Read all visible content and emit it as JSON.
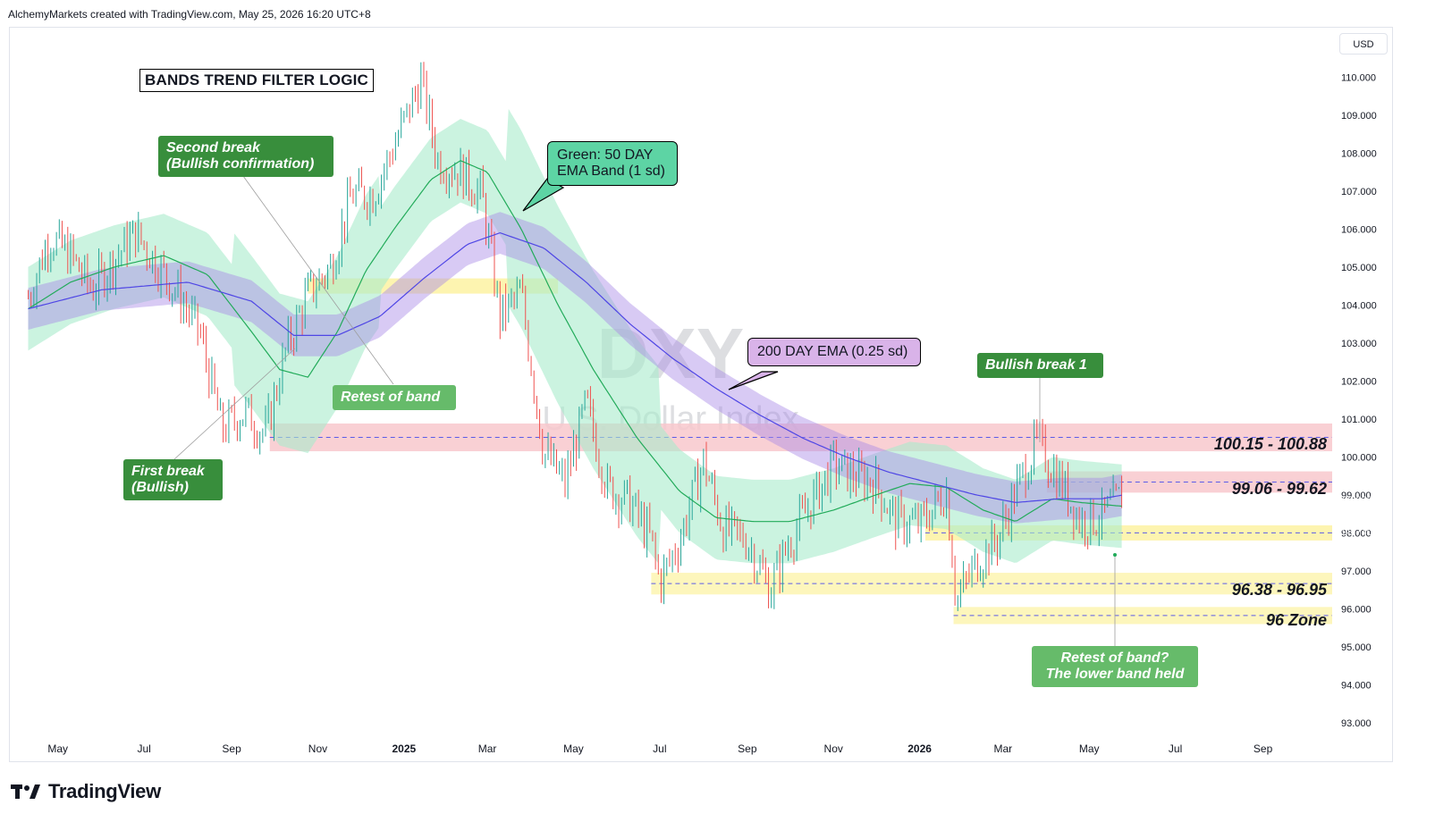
{
  "header": {
    "credit": "AlchemyMarkets created with TradingView.com, May 25, 2026 16:20 UTC+8",
    "currency": "USD"
  },
  "brand": {
    "name": "TradingView",
    "icon": "tradingview-logo-icon"
  },
  "watermark": {
    "symbol": "DXY",
    "name": "U.S. Dollar Index"
  },
  "annotations": {
    "title": "BANDS TREND FILTER LOGIC",
    "second_break_1": "Second break",
    "second_break_2": "(Bullish confirmation)",
    "first_break_1": "First break",
    "first_break_2": "(Bullish)",
    "retest_band": "Retest of band",
    "ema50_1": "Green: 50 DAY",
    "ema50_2": "EMA Band (1 sd)",
    "ema200": "200 DAY EMA (0.25 sd)",
    "bullish_break_1": "Bullish break 1",
    "retest_q_1": "Retest of band?",
    "retest_q_2": "The lower band held"
  },
  "zones": [
    {
      "label": "100.15 - 100.88",
      "low": 100.15,
      "high": 100.88,
      "color": "#f8c8cc"
    },
    {
      "label": "99.06 - 99.62",
      "low": 99.06,
      "high": 99.62,
      "color": "#f8c8cc"
    },
    {
      "label": "96.38 - 96.95",
      "low": 96.38,
      "high": 96.95,
      "color": "#fdf4b0"
    },
    {
      "label": "96 Zone",
      "low": 95.6,
      "high": 96.05,
      "color": "#fdf4b0"
    }
  ],
  "price_tags": [
    {
      "value": "99.020",
      "color": "#f23645"
    },
    {
      "value": "98.997",
      "color": "#7b2cf5"
    },
    {
      "value": "98.740",
      "color": "#22ab5a"
    }
  ],
  "chart_data": {
    "type": "line",
    "title": "",
    "symbol": "DXY",
    "ylim": [
      92.6,
      111.3
    ],
    "y_ticks": [
      "93.000",
      "94.000",
      "95.000",
      "96.000",
      "97.000",
      "98.000",
      "99.000",
      "100.000",
      "101.000",
      "102.000",
      "103.000",
      "104.000",
      "105.000",
      "106.000",
      "107.000",
      "108.000",
      "109.000",
      "110.000"
    ],
    "x_ticks": [
      "May",
      "Jul",
      "Sep",
      "Nov",
      "2025",
      "Mar",
      "May",
      "Jul",
      "Sep",
      "Nov",
      "2026",
      "Mar",
      "May",
      "Jul",
      "Sep"
    ],
    "grid": false,
    "series": [
      {
        "name": "Green: 50 DAY EMA Band (1 sd)",
        "x": [
          "2024-04-10",
          "2024-05-10",
          "2024-06-10",
          "2024-07-15",
          "2024-08-15",
          "2024-09-15",
          "2024-10-05",
          "2024-10-25",
          "2024-11-15",
          "2024-12-05",
          "2024-12-25",
          "2025-01-20",
          "2025-02-10",
          "2025-03-01",
          "2025-03-25",
          "2025-04-20",
          "2025-05-15",
          "2025-06-15",
          "2025-07-15",
          "2025-08-10",
          "2025-09-05",
          "2025-10-01",
          "2025-11-01",
          "2025-12-01",
          "2025-12-25",
          "2026-01-20",
          "2026-02-15",
          "2026-03-10",
          "2026-04-05",
          "2026-04-25",
          "2026-05-25"
        ],
        "values": [
          103.9,
          104.6,
          105.0,
          105.3,
          104.8,
          103.3,
          102.3,
          102.1,
          103.3,
          104.9,
          106.0,
          107.3,
          107.8,
          107.5,
          106.0,
          104.0,
          102.3,
          100.5,
          99.1,
          98.4,
          98.3,
          98.3,
          98.6,
          99.0,
          99.3,
          99.2,
          98.6,
          98.3,
          98.9,
          98.8,
          98.7
        ]
      },
      {
        "name": "200 DAY EMA (0.25 sd)",
        "x": [
          "2024-04-10",
          "2024-06-01",
          "2024-08-01",
          "2024-09-15",
          "2024-10-15",
          "2024-11-15",
          "2024-12-15",
          "2025-01-15",
          "2025-02-15",
          "2025-03-10",
          "2025-04-10",
          "2025-05-10",
          "2025-06-10",
          "2025-07-10",
          "2025-08-10",
          "2025-09-10",
          "2025-10-10",
          "2025-11-10",
          "2025-12-10",
          "2026-01-10",
          "2026-02-10",
          "2026-03-10",
          "2026-04-10",
          "2026-05-10",
          "2026-05-25"
        ],
        "values": [
          103.9,
          104.4,
          104.6,
          104.1,
          103.2,
          103.2,
          103.7,
          104.7,
          105.6,
          105.9,
          105.5,
          104.6,
          103.5,
          102.6,
          101.8,
          101.1,
          100.5,
          100.0,
          99.6,
          99.3,
          99.0,
          98.8,
          98.9,
          98.9,
          99.0
        ]
      }
    ],
    "price": {
      "x": [
        "2024-04-10",
        "2024-04-25",
        "2024-05-10",
        "2024-05-25",
        "2024-06-10",
        "2024-06-25",
        "2024-07-10",
        "2024-07-25",
        "2024-08-10",
        "2024-08-25",
        "2024-09-10",
        "2024-09-25",
        "2024-10-10",
        "2024-10-25",
        "2024-11-10",
        "2024-11-25",
        "2024-12-10",
        "2024-12-25",
        "2025-01-13",
        "2025-01-25",
        "2025-02-10",
        "2025-02-25",
        "2025-03-10",
        "2025-03-25",
        "2025-04-10",
        "2025-04-25",
        "2025-05-10",
        "2025-05-25",
        "2025-06-10",
        "2025-06-25",
        "2025-07-01",
        "2025-07-15",
        "2025-08-01",
        "2025-08-15",
        "2025-09-01",
        "2025-09-17",
        "2025-10-01",
        "2025-10-15",
        "2025-11-01",
        "2025-11-15",
        "2025-12-01",
        "2025-12-15",
        "2026-01-01",
        "2026-01-20",
        "2026-01-27",
        "2026-02-10",
        "2026-02-25",
        "2026-03-10",
        "2026-03-25",
        "2026-04-10",
        "2026-04-25",
        "2026-05-10",
        "2026-05-25"
      ],
      "values": [
        104.2,
        105.8,
        105.3,
        104.4,
        105.2,
        105.9,
        105.1,
        104.3,
        103.2,
        100.7,
        101.2,
        100.6,
        102.9,
        104.3,
        105.0,
        106.9,
        106.9,
        108.2,
        109.9,
        107.8,
        107.5,
        106.9,
        103.7,
        104.3,
        100.1,
        99.3,
        101.4,
        99.2,
        98.8,
        97.8,
        96.7,
        97.8,
        99.9,
        98.1,
        97.8,
        96.5,
        97.8,
        98.7,
        99.8,
        99.5,
        99.3,
        98.3,
        98.2,
        99.1,
        96.2,
        97.2,
        97.8,
        99.1,
        100.4,
        99.4,
        98.3,
        98.4,
        99.0
      ]
    },
    "y_label_values": {
      "last_close": 99.02,
      "ema200": 98.997,
      "ema50": 98.74
    }
  }
}
